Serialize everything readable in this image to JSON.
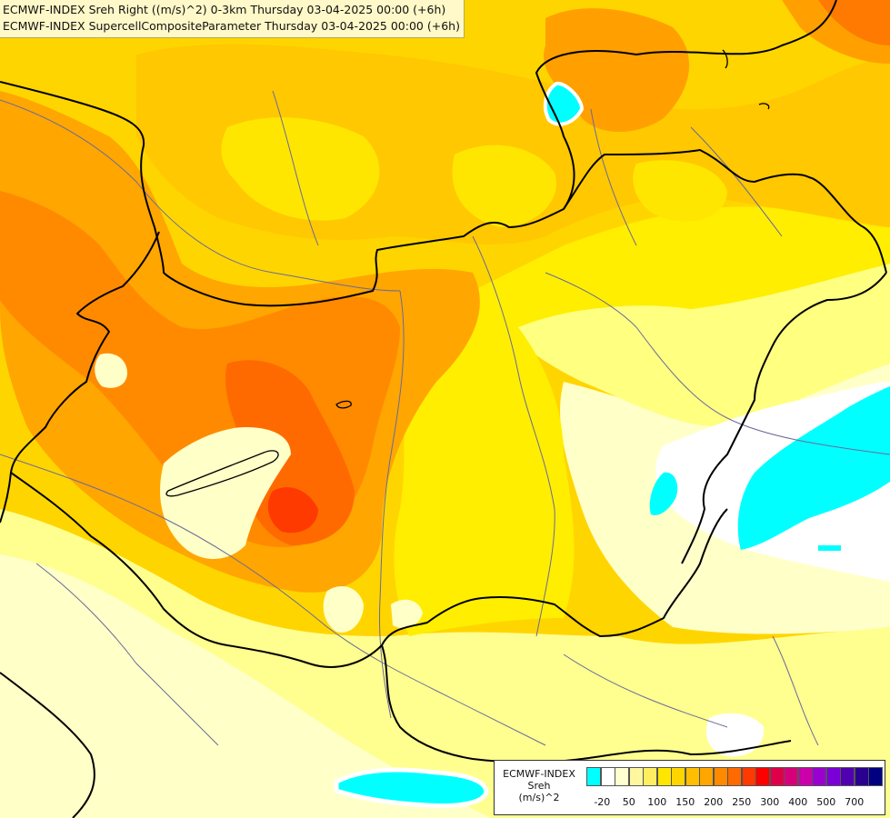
{
  "titles": {
    "line1": "ECMWF-INDEX Sreh Right ((m/s)^2) 0-3km Thursday 03-04-2025 00:00 (+6h)",
    "line2": "ECMWF-INDEX SupercellCompositeParameter Thursday 03-04-2025 00:00 (+6h)"
  },
  "legend": {
    "line1": "ECMWF-INDEX",
    "line2": "Sreh",
    "line3": "(m/s)^2",
    "ticks": [
      "-20",
      "50",
      "100",
      "150",
      "200",
      "250",
      "300",
      "400",
      "500",
      "700"
    ],
    "colors": [
      "#00ffff",
      "#ffffff",
      "#ffffd0",
      "#fff6a0",
      "#ffef60",
      "#ffe600",
      "#ffd500",
      "#ffbf00",
      "#ffa600",
      "#ff8a00",
      "#ff6a00",
      "#ff3a00",
      "#ff0000",
      "#e0004a",
      "#d6007a",
      "#cc00aa",
      "#9a00d0",
      "#7a00d8",
      "#5000b0",
      "#2a0090",
      "#000080"
    ]
  },
  "map_colors": {
    "pale": "#ffffc8",
    "light_yellow": "#ffff80",
    "yellow": "#ffee00",
    "gold": "#ffd700",
    "orange_light": "#ffb800",
    "orange": "#ff9a00",
    "orange_dark": "#ff7a00",
    "red_orange": "#ff5500",
    "cyan": "#00ffff",
    "border": "#000000",
    "river": "#6a6a9a"
  }
}
